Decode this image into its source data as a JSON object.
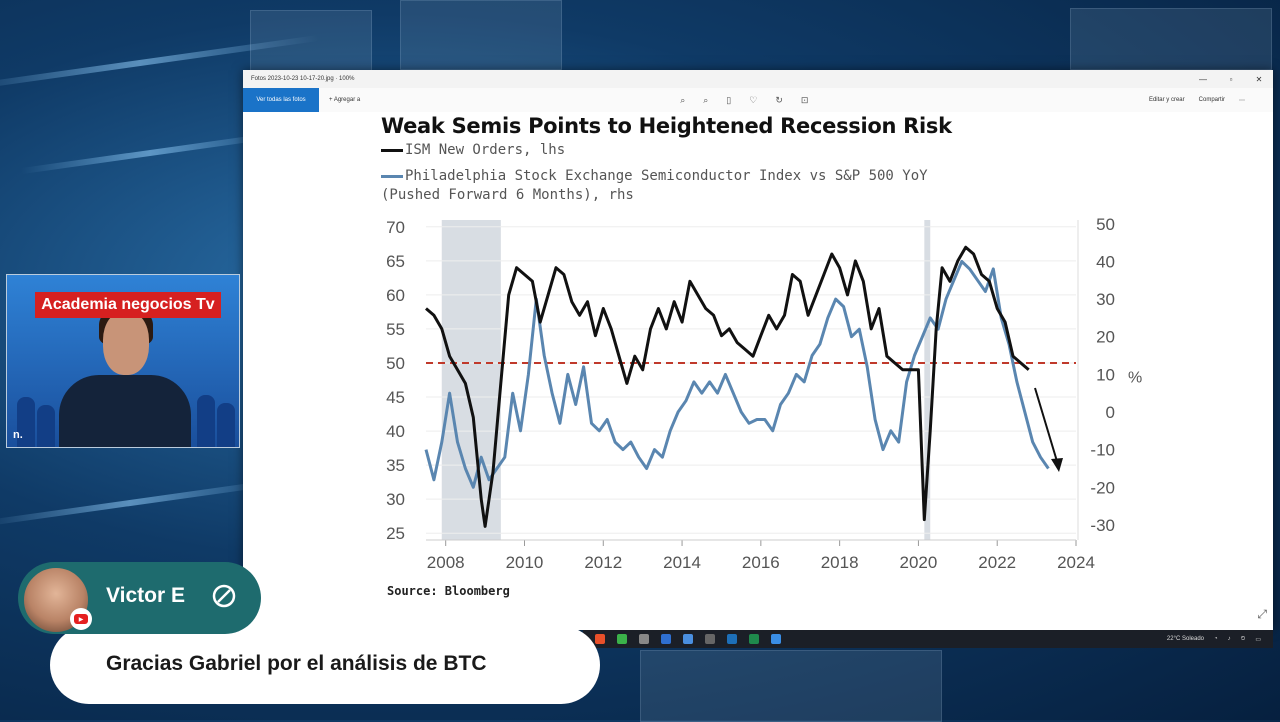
{
  "viewer": {
    "window_title": "Fotos 2023-10-23 10-17-20.jpg · 100%",
    "toolbar_active": "Ver todas las fotos",
    "toolbar_add": "Agregar a",
    "toolbar_edit": "Editar y crear",
    "toolbar_share": "Compartir"
  },
  "chart_data": {
    "type": "line",
    "title": "Weak Semis Points to Heightened Recession Risk",
    "series": [
      {
        "name": "ISM New Orders, lhs",
        "axis": "left",
        "color": "#111111",
        "x": [
          2007.5,
          2007.7,
          2007.9,
          2008.1,
          2008.3,
          2008.5,
          2008.7,
          2008.9,
          2009.0,
          2009.2,
          2009.4,
          2009.6,
          2009.8,
          2010.0,
          2010.2,
          2010.4,
          2010.6,
          2010.8,
          2011.0,
          2011.2,
          2011.4,
          2011.6,
          2011.8,
          2012.0,
          2012.2,
          2012.4,
          2012.6,
          2012.8,
          2013.0,
          2013.2,
          2013.4,
          2013.6,
          2013.8,
          2014.0,
          2014.2,
          2014.4,
          2014.6,
          2014.8,
          2015.0,
          2015.2,
          2015.4,
          2015.6,
          2015.8,
          2016.0,
          2016.2,
          2016.4,
          2016.6,
          2016.8,
          2017.0,
          2017.2,
          2017.4,
          2017.6,
          2017.8,
          2018.0,
          2018.2,
          2018.4,
          2018.6,
          2018.8,
          2019.0,
          2019.2,
          2019.4,
          2019.6,
          2019.8,
          2020.0,
          2020.15,
          2020.3,
          2020.45,
          2020.6,
          2020.8,
          2021.0,
          2021.2,
          2021.4,
          2021.6,
          2021.8,
          2022.0,
          2022.2,
          2022.4,
          2022.6,
          2022.8
        ],
        "values": [
          58,
          57,
          55,
          51,
          49,
          47,
          42,
          30,
          26,
          34,
          47,
          60,
          64,
          63,
          62,
          56,
          60,
          64,
          63,
          59,
          57,
          59,
          54,
          58,
          55,
          51,
          47,
          51,
          49,
          55,
          58,
          55,
          59,
          56,
          62,
          60,
          58,
          57,
          54,
          55,
          53,
          52,
          51,
          54,
          57,
          55,
          57,
          63,
          62,
          57,
          60,
          63,
          66,
          64,
          60,
          65,
          62,
          55,
          58,
          51,
          50,
          49,
          49,
          49,
          27,
          40,
          55,
          64,
          62,
          65,
          67,
          66,
          63,
          62,
          58,
          56,
          51,
          50,
          49
        ]
      },
      {
        "name": "Philadelphia Stock Exchange Semiconductor Index vs S&P 500 YoY (Pushed Forward 6 Months), rhs",
        "axis": "right",
        "color": "#5a86b0",
        "x": [
          2007.5,
          2007.7,
          2007.9,
          2008.1,
          2008.3,
          2008.5,
          2008.7,
          2008.9,
          2009.1,
          2009.3,
          2009.5,
          2009.7,
          2009.9,
          2010.1,
          2010.3,
          2010.5,
          2010.7,
          2010.9,
          2011.1,
          2011.3,
          2011.5,
          2011.7,
          2011.9,
          2012.1,
          2012.3,
          2012.5,
          2012.7,
          2012.9,
          2013.1,
          2013.3,
          2013.5,
          2013.7,
          2013.9,
          2014.1,
          2014.3,
          2014.5,
          2014.7,
          2014.9,
          2015.1,
          2015.3,
          2015.5,
          2015.7,
          2015.9,
          2016.1,
          2016.3,
          2016.5,
          2016.7,
          2016.9,
          2017.1,
          2017.3,
          2017.5,
          2017.7,
          2017.9,
          2018.1,
          2018.3,
          2018.5,
          2018.7,
          2018.9,
          2019.1,
          2019.3,
          2019.5,
          2019.7,
          2019.9,
          2020.1,
          2020.3,
          2020.5,
          2020.7,
          2020.9,
          2021.1,
          2021.3,
          2021.5,
          2021.7,
          2021.9,
          2022.1,
          2022.3,
          2022.5,
          2022.7,
          2022.9,
          2023.1,
          2023.3
        ],
        "values": [
          -10,
          -18,
          -8,
          5,
          -8,
          -15,
          -20,
          -12,
          -18,
          -15,
          -12,
          5,
          -5,
          10,
          30,
          15,
          5,
          -3,
          10,
          2,
          12,
          -3,
          -5,
          -2,
          -8,
          -10,
          -8,
          -12,
          -15,
          -10,
          -12,
          -5,
          0,
          3,
          8,
          5,
          8,
          5,
          10,
          5,
          0,
          -3,
          -2,
          -2,
          -5,
          2,
          5,
          10,
          8,
          15,
          18,
          25,
          30,
          28,
          20,
          22,
          12,
          -2,
          -10,
          -5,
          -8,
          8,
          15,
          20,
          25,
          22,
          30,
          35,
          40,
          38,
          35,
          32,
          38,
          25,
          18,
          8,
          0,
          -8,
          -12,
          -15
        ]
      }
    ],
    "x_ticks": [
      "2008",
      "2010",
      "2012",
      "2014",
      "2016",
      "2018",
      "2020",
      "2022",
      "2024"
    ],
    "y_left_ticks": [
      "70",
      "65",
      "60",
      "55",
      "50",
      "45",
      "40",
      "35",
      "30",
      "25"
    ],
    "y_right_ticks": [
      "50",
      "40",
      "30",
      "20",
      "10",
      "0",
      "-10",
      "-20",
      "-30"
    ],
    "y_right_label": "%",
    "xlim": [
      2007.5,
      2024
    ],
    "ylim_left": [
      24,
      71
    ],
    "ylim_right": [
      -34,
      51
    ],
    "reference_line_left": 50,
    "reference_line_color": "#c0392b",
    "shaded_ranges": [
      [
        2007.9,
        2009.4
      ],
      [
        2020.15,
        2020.3
      ]
    ],
    "source": "Source: Bloomberg"
  },
  "webcam": {
    "banner": "Academia negocios Tv",
    "logo": "n."
  },
  "chat": {
    "username": "Victor E",
    "message": "Gracias Gabriel por el análisis de BTC"
  },
  "taskbar": {
    "weather": "22°C  Soleado"
  }
}
